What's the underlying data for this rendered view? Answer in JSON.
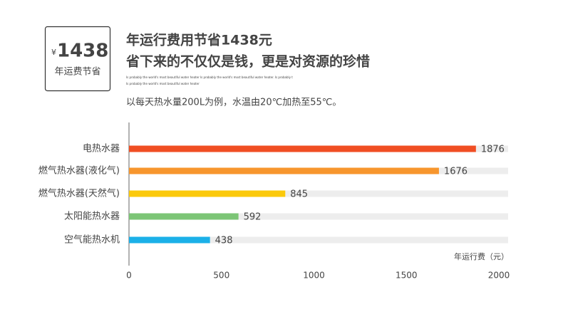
{
  "header": {
    "badge_currency": "¥",
    "badge_value": 1438,
    "badge_label": "年运费节省",
    "title_line1": "年运行费用节省1438元",
    "title_line2": "省下来的不仅仅是钱，更是对资源的珍惜",
    "tagline1": "Is probably the world's most beautiful water heater Is probably the world's most beautiful water heater. Is probably t",
    "tagline2": "Is probably the world's most beautiful water heater"
  },
  "chart_data": {
    "type": "bar",
    "orientation": "horizontal",
    "subtitle": "以每天热水量200L为例，水温由20℃加热至55℃。",
    "x_label": "年运行费（元）",
    "categories": [
      "电热水器",
      "燃气热水器(液化气)",
      "燃气热水器(天然气)",
      "太阳能热水器",
      "空气能热水机"
    ],
    "values": [
      1876,
      1676,
      845,
      592,
      438
    ],
    "colors": [
      "#f04e23",
      "#f7962d",
      "#fbc90b",
      "#7cc576",
      "#1bb0e8"
    ],
    "xlim": [
      0,
      2000
    ],
    "xticks": [
      0,
      500,
      1000,
      1500,
      2000
    ],
    "grid": false
  }
}
